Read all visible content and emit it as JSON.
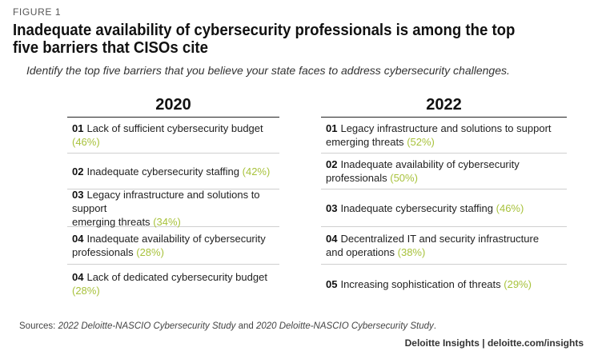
{
  "figure_label": "FIGURE 1",
  "title": "Inadequate availability of cybersecurity professionals is among the top five barriers that CISOs cite",
  "subtitle": "Identify the top five barriers that you believe your state faces to address cybersecurity challenges.",
  "columns": [
    {
      "year": "2020",
      "items": [
        {
          "num": "01",
          "line1": "Lack of sufficient cybersecurity budget",
          "line2": "",
          "pct": "(46%)"
        },
        {
          "num": "02",
          "line1": "Inadequate cybersecurity staffing",
          "line2": "",
          "pct": "(42%)"
        },
        {
          "num": "03",
          "line1": "Legacy infrastructure and solutions to support",
          "line2": "emerging threats",
          "pct": "(34%)"
        },
        {
          "num": "04",
          "line1": "Inadequate availability of cybersecurity",
          "line2": "professionals",
          "pct": "(28%)"
        },
        {
          "num": "04",
          "line1": "Lack of dedicated cybersecurity budget",
          "line2": "",
          "pct": "(28%)"
        }
      ]
    },
    {
      "year": "2022",
      "items": [
        {
          "num": "01",
          "line1": "Legacy infrastructure and solutions to support",
          "line2": "emerging threats",
          "pct": "(52%)"
        },
        {
          "num": "02",
          "line1": "Inadequate availability of cybersecurity",
          "line2": "professionals",
          "pct": "(50%)"
        },
        {
          "num": "03",
          "line1": "Inadequate cybersecurity staffing",
          "line2": "",
          "pct": "(46%)"
        },
        {
          "num": "04",
          "line1": "Decentralized IT and security infrastructure",
          "line2": "and operations",
          "pct": "(38%)"
        },
        {
          "num": "05",
          "line1": "Increasing sophistication of threats",
          "line2": "",
          "pct": "(29%)"
        }
      ]
    }
  ],
  "sources": {
    "prefix": "Sources: ",
    "study1": "2022 Deloitte-NASCIO Cybersecurity Study",
    "and": " and ",
    "study2": "2020 Deloitte-NASCIO Cybersecurity Study",
    "suffix": "."
  },
  "brand": "Deloitte Insights | deloitte.com/insights",
  "colors": {
    "accent_percent": "#a8c23c"
  }
}
